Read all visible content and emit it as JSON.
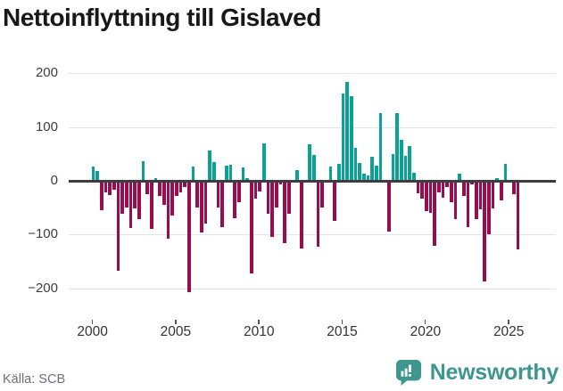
{
  "title": "Nettoinflyttning till Gislaved",
  "source_label": "Källa: SCB",
  "brand": {
    "name": "Newsworthy",
    "icon": "bar-chart-speech-bubble-icon"
  },
  "colors": {
    "positive": "#09a295",
    "negative": "#9b0c4e",
    "grid": "#e4e4e4",
    "zero_line": "#3d3d3d",
    "axis_text": "#3d3d3d",
    "x_axis_text": "#333333",
    "source_text": "#6e6e78",
    "title_text": "#181818",
    "brand_color": "#3e968f"
  },
  "chart_data": {
    "type": "bar",
    "title": "Nettoinflyttning till Gislaved",
    "xlabel": "",
    "ylabel": "",
    "frequency": "quarterly",
    "start_period": "2000 Q1",
    "end_period": "2025 Q3",
    "ylim": [
      -230,
      215
    ],
    "grid": true,
    "y_ticks": {
      "values": [
        200,
        100,
        0,
        -100,
        -200
      ],
      "labels": [
        "200",
        "100",
        "0",
        "−100",
        "−200"
      ]
    },
    "x_ticks": {
      "years": [
        2000,
        2005,
        2010,
        2015,
        2020,
        2025
      ],
      "labels": [
        "2000",
        "2005",
        "2010",
        "2015",
        "2020",
        "2025"
      ]
    },
    "values": [
      27,
      19,
      -55,
      -21,
      -26,
      -17,
      -168,
      -61,
      -50,
      -88,
      -52,
      -72,
      36,
      -25,
      -90,
      5,
      -28,
      -44,
      -108,
      -64,
      -28,
      -22,
      -12,
      -208,
      27,
      -50,
      -97,
      -80,
      57,
      35,
      -50,
      -86,
      28,
      30,
      -69,
      -40,
      25,
      5,
      -173,
      -33,
      -20,
      69,
      -61,
      -104,
      -50,
      -6,
      -116,
      -62,
      0,
      20,
      -126,
      0,
      68,
      48,
      -122,
      -50,
      0,
      27,
      -75,
      31,
      162,
      184,
      157,
      62,
      33,
      14,
      10,
      44,
      29,
      126,
      0,
      -94,
      50,
      126,
      77,
      47,
      64,
      15,
      -23,
      -33,
      -57,
      -60,
      -121,
      -22,
      -32,
      -11,
      -39,
      -71,
      14,
      -28,
      -86,
      -7,
      -72,
      -53,
      -187,
      -100,
      -51,
      5,
      -36,
      31,
      0,
      -25,
      -127
    ]
  }
}
